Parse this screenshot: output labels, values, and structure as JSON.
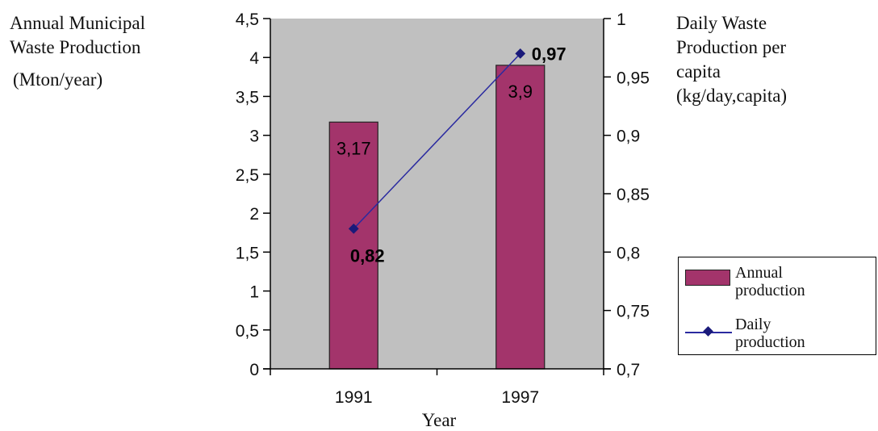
{
  "chart_data": {
    "type": "bar",
    "categories": [
      "1991",
      "1997"
    ],
    "left_axis": {
      "label_line1": "Annual Municipal",
      "label_line2": "Waste Production",
      "label_unit": "(Mton/year)",
      "ylim": [
        0,
        4.5
      ],
      "ticks": [
        "0",
        "0,5",
        "1",
        "1,5",
        "2",
        "2,5",
        "3",
        "3,5",
        "4",
        "4,5"
      ],
      "tick_values": [
        0,
        0.5,
        1,
        1.5,
        2,
        2.5,
        3,
        3.5,
        4,
        4.5
      ]
    },
    "right_axis": {
      "label_line1": "Daily Waste",
      "label_line2": "Production per",
      "label_line3": "capita",
      "label_unit": "(kg/day,capita)",
      "ylim": [
        0.7,
        1.0
      ],
      "ticks": [
        "0,7",
        "0,75",
        "0,8",
        "0,85",
        "0,9",
        "0,95",
        "1"
      ],
      "tick_values": [
        0.7,
        0.75,
        0.8,
        0.85,
        0.9,
        0.95,
        1.0
      ]
    },
    "xlabel": "Year",
    "series": [
      {
        "name": "Annual production",
        "kind": "bar",
        "axis": "left",
        "values": [
          3.17,
          3.9
        ],
        "labels": [
          "3,17",
          "3,9"
        ],
        "color": "#a3346b"
      },
      {
        "name": "Daily production",
        "kind": "line",
        "axis": "right",
        "values": [
          0.82,
          0.97
        ],
        "labels": [
          "0,82",
          "0,97"
        ],
        "color": "#2a2aa0"
      }
    ],
    "plot_background": "#c0c0c0",
    "grid": false,
    "legend": {
      "position": "right",
      "bar_line1": "Annual",
      "bar_line2": "production",
      "line_line1": "Daily",
      "line_line2": "production"
    }
  }
}
